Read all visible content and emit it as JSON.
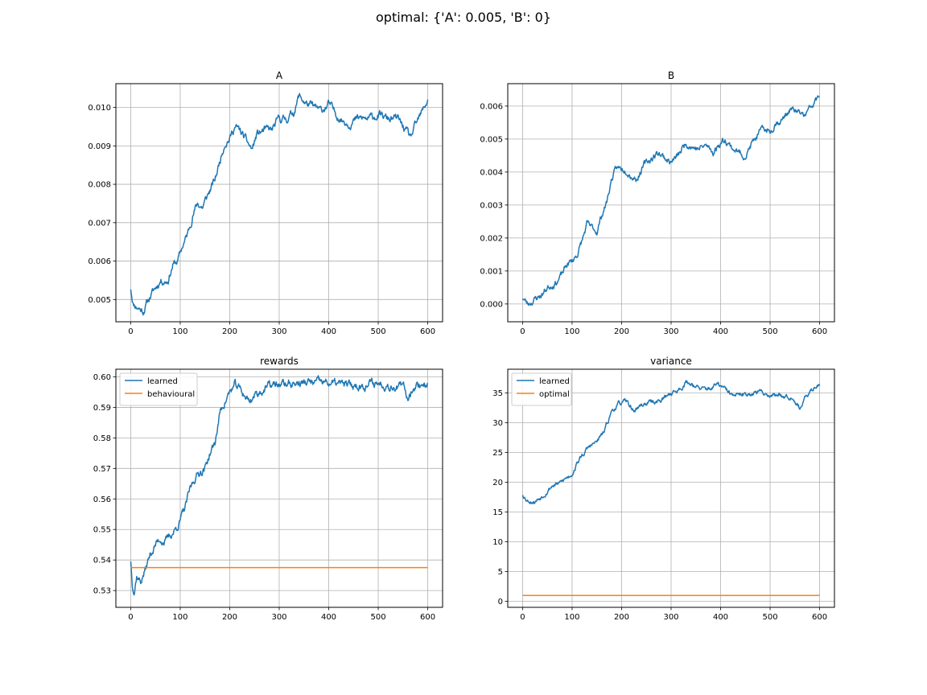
{
  "suptitle": "optimal: {'A': 0.005, 'B': 0}",
  "colors": {
    "learned": "#1f77b4",
    "reference": "#ff7f0e",
    "grid": "#b0b0b0"
  },
  "chart_data": [
    {
      "type": "line",
      "title": "A",
      "xlim": [
        -30,
        630
      ],
      "ylim": [
        0.00442,
        0.01062
      ],
      "xticks": [
        0,
        100,
        200,
        300,
        400,
        500,
        600
      ],
      "yticks": [
        0.005,
        0.006,
        0.007,
        0.008,
        0.009,
        0.01
      ],
      "ytick_labels": [
        "0.005",
        "0.006",
        "0.007",
        "0.008",
        "0.009",
        "0.010"
      ],
      "grid": true,
      "legend": null,
      "series": [
        {
          "noise": 9e-05,
          "seed": 11,
          "keypoints": [
            [
              0,
              0.0053
            ],
            [
              5,
              0.0049
            ],
            [
              15,
              0.0048
            ],
            [
              25,
              0.0047
            ],
            [
              40,
              0.0051
            ],
            [
              60,
              0.0055
            ],
            [
              75,
              0.0055
            ],
            [
              85,
              0.0059
            ],
            [
              95,
              0.006
            ],
            [
              105,
              0.0064
            ],
            [
              115,
              0.0067
            ],
            [
              125,
              0.0072
            ],
            [
              135,
              0.0075
            ],
            [
              145,
              0.0074
            ],
            [
              155,
              0.0077
            ],
            [
              170,
              0.0081
            ],
            [
              180,
              0.0086
            ],
            [
              190,
              0.0091
            ],
            [
              200,
              0.0092
            ],
            [
              210,
              0.0095
            ],
            [
              220,
              0.0094
            ],
            [
              235,
              0.0091
            ],
            [
              245,
              0.0089
            ],
            [
              255,
              0.0093
            ],
            [
              270,
              0.0094
            ],
            [
              285,
              0.0094
            ],
            [
              300,
              0.0097
            ],
            [
              315,
              0.0097
            ],
            [
              330,
              0.0099
            ],
            [
              340,
              0.0103
            ],
            [
              355,
              0.0101
            ],
            [
              370,
              0.01
            ],
            [
              385,
              0.0099
            ],
            [
              400,
              0.0101
            ],
            [
              410,
              0.0099
            ],
            [
              425,
              0.0097
            ],
            [
              440,
              0.0096
            ],
            [
              460,
              0.0097
            ],
            [
              480,
              0.0097
            ],
            [
              500,
              0.0098
            ],
            [
              520,
              0.0097
            ],
            [
              540,
              0.0097
            ],
            [
              555,
              0.0094
            ],
            [
              565,
              0.0092
            ],
            [
              575,
              0.0095
            ],
            [
              590,
              0.0099
            ],
            [
              600,
              0.0102
            ]
          ]
        }
      ]
    },
    {
      "type": "line",
      "title": "B",
      "xlim": [
        -30,
        630
      ],
      "ylim": [
        -0.00054,
        0.00668
      ],
      "xticks": [
        0,
        100,
        200,
        300,
        400,
        500,
        600
      ],
      "yticks": [
        0.0,
        0.001,
        0.002,
        0.003,
        0.004,
        0.005,
        0.006
      ],
      "ytick_labels": [
        "0.000",
        "0.001",
        "0.002",
        "0.003",
        "0.004",
        "0.005",
        "0.006"
      ],
      "grid": true,
      "legend": null,
      "series": [
        {
          "noise": 9e-05,
          "seed": 23,
          "keypoints": [
            [
              0,
              0.0002
            ],
            [
              10,
              0.0
            ],
            [
              20,
              0.0001
            ],
            [
              30,
              0.0002
            ],
            [
              40,
              0.0003
            ],
            [
              50,
              0.0005
            ],
            [
              60,
              0.0006
            ],
            [
              70,
              0.0007
            ],
            [
              80,
              0.0009
            ],
            [
              90,
              0.0012
            ],
            [
              100,
              0.0013
            ],
            [
              110,
              0.0015
            ],
            [
              120,
              0.0019
            ],
            [
              130,
              0.0024
            ],
            [
              140,
              0.0023
            ],
            [
              150,
              0.0022
            ],
            [
              160,
              0.0027
            ],
            [
              170,
              0.0031
            ],
            [
              180,
              0.0038
            ],
            [
              190,
              0.0041
            ],
            [
              200,
              0.0041
            ],
            [
              210,
              0.0041
            ],
            [
              220,
              0.0039
            ],
            [
              230,
              0.0038
            ],
            [
              245,
              0.0042
            ],
            [
              260,
              0.0044
            ],
            [
              275,
              0.0046
            ],
            [
              290,
              0.0044
            ],
            [
              300,
              0.0043
            ],
            [
              315,
              0.0045
            ],
            [
              330,
              0.0049
            ],
            [
              340,
              0.0048
            ],
            [
              355,
              0.0047
            ],
            [
              370,
              0.0048
            ],
            [
              385,
              0.0046
            ],
            [
              400,
              0.0049
            ],
            [
              410,
              0.005
            ],
            [
              420,
              0.0048
            ],
            [
              435,
              0.0046
            ],
            [
              450,
              0.0045
            ],
            [
              465,
              0.0049
            ],
            [
              480,
              0.0052
            ],
            [
              490,
              0.0053
            ],
            [
              500,
              0.0052
            ],
            [
              510,
              0.0055
            ],
            [
              525,
              0.0056
            ],
            [
              540,
              0.0059
            ],
            [
              555,
              0.0058
            ],
            [
              570,
              0.0057
            ],
            [
              585,
              0.006
            ],
            [
              600,
              0.0063
            ]
          ]
        }
      ]
    },
    {
      "type": "line",
      "title": "rewards",
      "xlim": [
        -30,
        630
      ],
      "ylim": [
        0.5245,
        0.6025
      ],
      "xticks": [
        0,
        100,
        200,
        300,
        400,
        500,
        600
      ],
      "yticks": [
        0.53,
        0.54,
        0.55,
        0.56,
        0.57,
        0.58,
        0.59,
        0.6
      ],
      "ytick_labels": [
        "0.53",
        "0.54",
        "0.55",
        "0.56",
        "0.57",
        "0.58",
        "0.59",
        "0.60"
      ],
      "grid": true,
      "legend": "upper left",
      "series": [
        {
          "name": "learned",
          "noise": 0.0012,
          "seed": 37,
          "keypoints": [
            [
              0,
              0.54
            ],
            [
              3,
              0.533
            ],
            [
              7,
              0.53
            ],
            [
              12,
              0.535
            ],
            [
              20,
              0.533
            ],
            [
              30,
              0.537
            ],
            [
              40,
              0.542
            ],
            [
              50,
              0.545
            ],
            [
              60,
              0.547
            ],
            [
              70,
              0.546
            ],
            [
              80,
              0.548
            ],
            [
              90,
              0.55
            ],
            [
              100,
              0.553
            ],
            [
              110,
              0.557
            ],
            [
              120,
              0.563
            ],
            [
              130,
              0.567
            ],
            [
              140,
              0.569
            ],
            [
              150,
              0.57
            ],
            [
              160,
              0.575
            ],
            [
              170,
              0.578
            ],
            [
              180,
              0.588
            ],
            [
              190,
              0.592
            ],
            [
              200,
              0.595
            ],
            [
              210,
              0.597
            ],
            [
              220,
              0.596
            ],
            [
              230,
              0.594
            ],
            [
              240,
              0.592
            ],
            [
              250,
              0.594
            ],
            [
              260,
              0.595
            ],
            [
              270,
              0.596
            ],
            [
              280,
              0.597
            ],
            [
              300,
              0.5975
            ],
            [
              350,
              0.598
            ],
            [
              400,
              0.598
            ],
            [
              450,
              0.597
            ],
            [
              500,
              0.598
            ],
            [
              540,
              0.597
            ],
            [
              553,
              0.596
            ],
            [
              560,
              0.593
            ],
            [
              570,
              0.597
            ],
            [
              600,
              0.598
            ]
          ]
        },
        {
          "name": "behavioural",
          "noise": 0,
          "seed": 0,
          "keypoints": [
            [
              0,
              0.5375
            ],
            [
              600,
              0.5375
            ]
          ]
        }
      ]
    },
    {
      "type": "line",
      "title": "variance",
      "xlim": [
        -30,
        630
      ],
      "ylim": [
        -1.0,
        39.0
      ],
      "xticks": [
        0,
        100,
        200,
        300,
        400,
        500,
        600
      ],
      "yticks": [
        0,
        5,
        10,
        15,
        20,
        25,
        30,
        35
      ],
      "ytick_labels": [
        "0",
        "5",
        "10",
        "15",
        "20",
        "25",
        "30",
        "35"
      ],
      "grid": true,
      "legend": "upper left",
      "series": [
        {
          "name": "learned",
          "noise": 0.35,
          "seed": 53,
          "keypoints": [
            [
              0,
              18.0
            ],
            [
              10,
              17.0
            ],
            [
              25,
              16.8
            ],
            [
              40,
              17.8
            ],
            [
              60,
              19.5
            ],
            [
              75,
              19.8
            ],
            [
              90,
              20.8
            ],
            [
              100,
              21.5
            ],
            [
              110,
              23.2
            ],
            [
              120,
              24.5
            ],
            [
              135,
              26.0
            ],
            [
              150,
              26.8
            ],
            [
              165,
              28.5
            ],
            [
              180,
              32.0
            ],
            [
              195,
              33.2
            ],
            [
              210,
              33.5
            ],
            [
              225,
              32.0
            ],
            [
              240,
              33.0
            ],
            [
              260,
              33.5
            ],
            [
              280,
              33.8
            ],
            [
              300,
              35.0
            ],
            [
              315,
              35.5
            ],
            [
              330,
              36.8
            ],
            [
              345,
              36.5
            ],
            [
              360,
              35.5
            ],
            [
              380,
              35.8
            ],
            [
              395,
              36.5
            ],
            [
              410,
              35.5
            ],
            [
              425,
              34.5
            ],
            [
              440,
              34.5
            ],
            [
              460,
              35.0
            ],
            [
              480,
              35.2
            ],
            [
              500,
              34.7
            ],
            [
              520,
              34.7
            ],
            [
              545,
              34.5
            ],
            [
              560,
              32.5
            ],
            [
              575,
              34.5
            ],
            [
              590,
              36.0
            ],
            [
              600,
              36.8
            ]
          ]
        },
        {
          "name": "optimal",
          "noise": 0,
          "seed": 0,
          "keypoints": [
            [
              0,
              1.0
            ],
            [
              600,
              1.0
            ]
          ]
        }
      ]
    }
  ]
}
